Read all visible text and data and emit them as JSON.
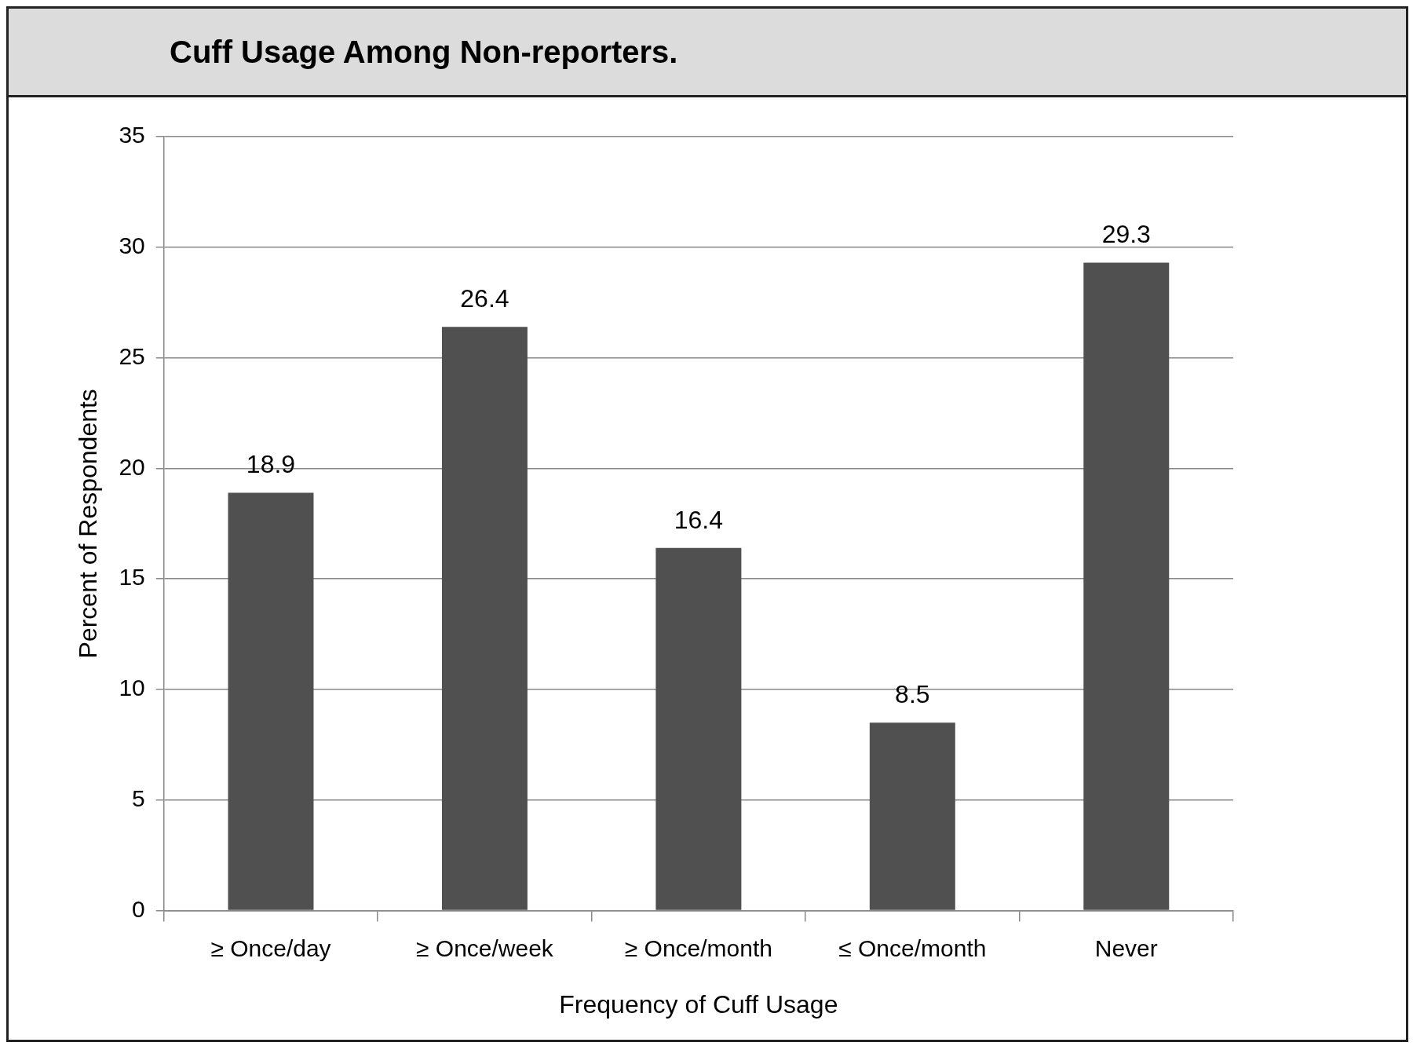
{
  "chart_data": {
    "type": "bar",
    "title": "Cuff Usage Among Non-reporters.",
    "xlabel": "Frequency of Cuff Usage",
    "ylabel": "Percent of Respondents",
    "categories": [
      "≥ Once/day",
      "≥ Once/week",
      "≥ Once/month",
      "≤ Once/month",
      "Never"
    ],
    "values": [
      18.9,
      26.4,
      16.4,
      8.5,
      29.3
    ],
    "color": "#505050",
    "ylim": [
      0,
      35
    ],
    "yticks": [
      0,
      5,
      10,
      15,
      20,
      25,
      30,
      35
    ],
    "grid": "y",
    "data_labels": true,
    "legend": false
  }
}
